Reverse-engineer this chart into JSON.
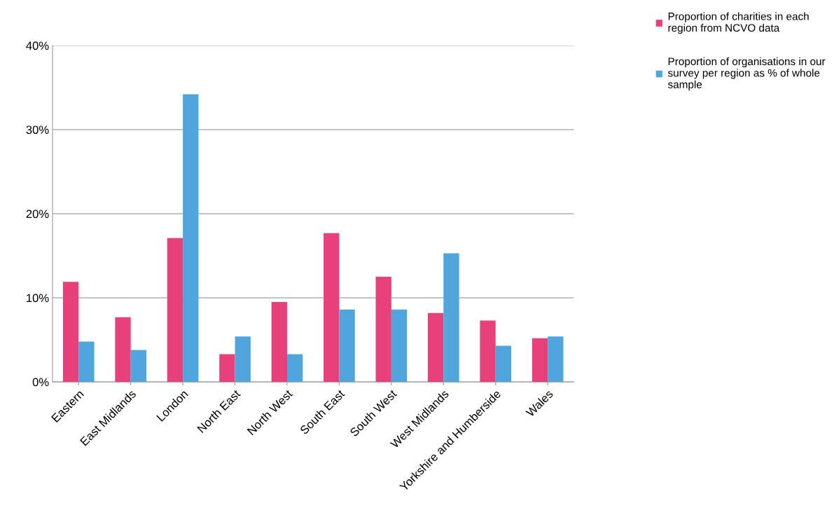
{
  "chart_data": {
    "type": "bar",
    "categories": [
      "Eastern",
      "East Midlands",
      "London",
      "North East",
      "North West",
      "South East",
      "South West",
      "West Midlands",
      "Yorkshire and Humberside",
      "Wales"
    ],
    "series": [
      {
        "name": "Proportion of charities in each\nregion from NCVO data",
        "color": "#e8407a",
        "values": [
          11.9,
          7.7,
          17.1,
          3.3,
          9.5,
          17.7,
          12.5,
          8.2,
          7.3,
          5.2
        ]
      },
      {
        "name": "Proportion of organisations in our\nsurvey per region as % of whole\nsample",
        "color": "#4ea6dc",
        "values": [
          4.8,
          3.8,
          34.2,
          5.4,
          3.3,
          8.6,
          8.6,
          15.3,
          4.3,
          5.4
        ]
      }
    ],
    "ylim": [
      0,
      40
    ],
    "yticks": [
      {
        "value": 0,
        "label": "0%"
      },
      {
        "value": 10,
        "label": "10%"
      },
      {
        "value": 20,
        "label": "20%"
      },
      {
        "value": 30,
        "label": "30%"
      },
      {
        "value": 40,
        "label": "40%"
      }
    ],
    "grid": "y",
    "legend": "top right"
  }
}
